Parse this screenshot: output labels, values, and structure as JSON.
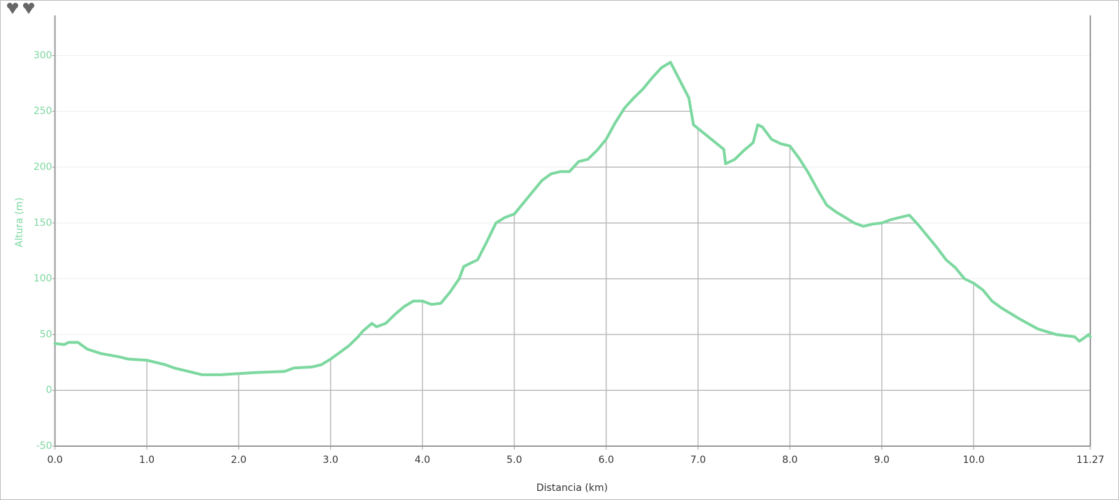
{
  "chart_data": {
    "type": "line",
    "x_label": "Distancia (km)",
    "y_label": "Altura (m)",
    "x": [
      0.0,
      0.1,
      0.15,
      0.25,
      0.3,
      0.35,
      0.5,
      0.7,
      0.8,
      1.0,
      1.1,
      1.2,
      1.3,
      1.4,
      1.6,
      1.8,
      2.0,
      2.2,
      2.5,
      2.6,
      2.8,
      2.9,
      3.0,
      3.1,
      3.2,
      3.3,
      3.35,
      3.45,
      3.5,
      3.6,
      3.7,
      3.8,
      3.9,
      4.0,
      4.1,
      4.2,
      4.3,
      4.4,
      4.45,
      4.6,
      4.7,
      4.8,
      4.9,
      5.0,
      5.1,
      5.2,
      5.3,
      5.4,
      5.5,
      5.6,
      5.7,
      5.8,
      5.9,
      6.0,
      6.1,
      6.2,
      6.3,
      6.4,
      6.5,
      6.6,
      6.7,
      6.8,
      6.9,
      6.95,
      7.1,
      7.28,
      7.3,
      7.4,
      7.5,
      7.6,
      7.65,
      7.7,
      7.8,
      7.9,
      8.0,
      8.1,
      8.2,
      8.3,
      8.4,
      8.5,
      8.6,
      8.7,
      8.8,
      8.9,
      9.0,
      9.1,
      9.2,
      9.3,
      9.4,
      9.5,
      9.6,
      9.7,
      9.8,
      9.9,
      10.0,
      10.1,
      10.2,
      10.3,
      10.5,
      10.7,
      10.9,
      11.0,
      11.1,
      11.15,
      11.22,
      11.25,
      11.27
    ],
    "series": [
      {
        "color": "#7dd8a0",
        "values": [
          42,
          41,
          43,
          43,
          40,
          37,
          33,
          30,
          28,
          27,
          25,
          23,
          20,
          18,
          14,
          14,
          15,
          16,
          17,
          20,
          21,
          23,
          28,
          34,
          40,
          48,
          53,
          60,
          57,
          60,
          68,
          75,
          80,
          80,
          77,
          78,
          88,
          100,
          111,
          117,
          133,
          150,
          155,
          158,
          168,
          178,
          188,
          194,
          196,
          196,
          205,
          207,
          215,
          225,
          240,
          253,
          262,
          270,
          280,
          289,
          294,
          278,
          262,
          238,
          228,
          216,
          203,
          207,
          215,
          222,
          238,
          236,
          225,
          221,
          219,
          208,
          195,
          180,
          166,
          160,
          155,
          150,
          147,
          149,
          150,
          153,
          155,
          157,
          148,
          138,
          128,
          117,
          110,
          100,
          96,
          90,
          80,
          74,
          64,
          55,
          50,
          49,
          48,
          44,
          48,
          50,
          48
        ]
      }
    ],
    "xlim": [
      0,
      11.27
    ],
    "ylim": [
      -50,
      336
    ],
    "xticks": [
      {
        "value": 0,
        "label": "0.0"
      },
      {
        "value": 1,
        "label": "1.0"
      },
      {
        "value": 2,
        "label": "2.0"
      },
      {
        "value": 3,
        "label": "3.0"
      },
      {
        "value": 4,
        "label": "4.0"
      },
      {
        "value": 5,
        "label": "5.0"
      },
      {
        "value": 6,
        "label": "6.0"
      },
      {
        "value": 7,
        "label": "7.0"
      },
      {
        "value": 8,
        "label": "8.0"
      },
      {
        "value": 9,
        "label": "9.0"
      },
      {
        "value": 10,
        "label": "10.0"
      },
      11.27
    ],
    "yticks": [
      -50,
      0,
      50,
      100,
      150,
      200,
      250,
      300
    ],
    "grid": true
  }
}
